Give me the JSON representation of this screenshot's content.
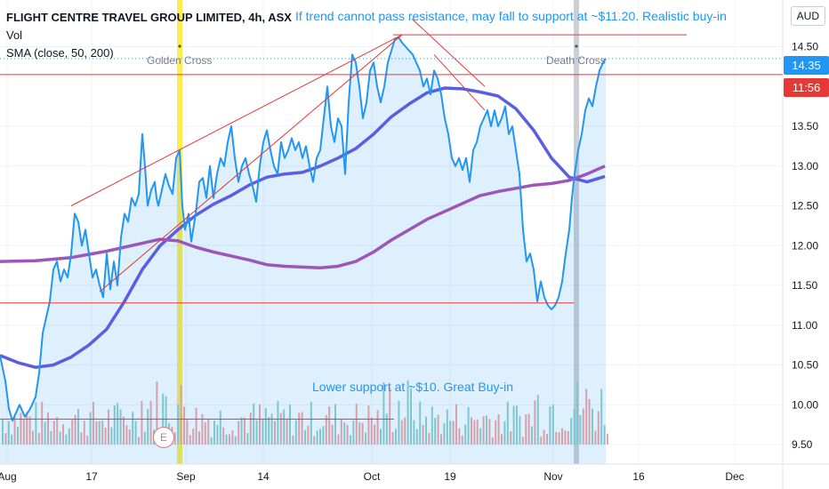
{
  "chart_data": {
    "type": "line",
    "title": "FLIGHT CENTRE TRAVEL GROUP LIMITED, 4h, ASX",
    "indicators": [
      "Vol",
      "SMA (close, 50, 200)"
    ],
    "currency": "AUD",
    "y_ticks": [
      "14.50",
      "13.50",
      "13.00",
      "12.50",
      "12.00",
      "11.50",
      "11.00",
      "10.50",
      "10.00",
      "9.50"
    ],
    "x_ticks": [
      "Aug",
      "17",
      "Sep",
      "14",
      "Oct",
      "19",
      "Nov",
      "16",
      "Dec"
    ],
    "ylim": [
      9.36,
      15.0
    ],
    "price_label": "14.35",
    "time_label": "11:56",
    "series": [
      {
        "color": "#2196f3",
        "points": [
          [
            0,
            10.62
          ],
          [
            6,
            10.3
          ],
          [
            10,
            9.95
          ],
          [
            14,
            9.8
          ],
          [
            18,
            9.9
          ],
          [
            22,
            10.0
          ],
          [
            28,
            9.85
          ],
          [
            34,
            9.95
          ],
          [
            40,
            10.1
          ],
          [
            44,
            10.4
          ],
          [
            48,
            10.9
          ],
          [
            52,
            11.1
          ],
          [
            56,
            11.3
          ],
          [
            60,
            11.7
          ],
          [
            64,
            11.8
          ],
          [
            68,
            11.55
          ],
          [
            72,
            11.7
          ],
          [
            76,
            11.6
          ],
          [
            80,
            11.9
          ],
          [
            84,
            12.4
          ],
          [
            88,
            12.3
          ],
          [
            92,
            12.0
          ],
          [
            96,
            12.2
          ],
          [
            100,
            11.9
          ],
          [
            104,
            11.6
          ],
          [
            108,
            11.7
          ],
          [
            112,
            11.5
          ],
          [
            116,
            11.35
          ],
          [
            120,
            11.9
          ],
          [
            124,
            11.45
          ],
          [
            128,
            11.8
          ],
          [
            132,
            11.5
          ],
          [
            136,
            12.1
          ],
          [
            140,
            12.4
          ],
          [
            144,
            12.3
          ],
          [
            148,
            12.6
          ],
          [
            152,
            12.5
          ],
          [
            156,
            12.65
          ],
          [
            160,
            13.4
          ],
          [
            163,
            13.0
          ],
          [
            166,
            12.5
          ],
          [
            170,
            12.7
          ],
          [
            174,
            12.8
          ],
          [
            176,
            12.6
          ],
          [
            178,
            12.5
          ],
          [
            182,
            12.7
          ],
          [
            186,
            12.9
          ],
          [
            190,
            12.75
          ],
          [
            194,
            12.65
          ],
          [
            198,
            13.1
          ],
          [
            202,
            13.2
          ],
          [
            205,
            12.5
          ],
          [
            208,
            12.2
          ],
          [
            212,
            12.4
          ],
          [
            215,
            12.05
          ],
          [
            220,
            12.4
          ],
          [
            224,
            12.8
          ],
          [
            228,
            12.85
          ],
          [
            232,
            12.6
          ],
          [
            236,
            13.0
          ],
          [
            240,
            12.6
          ],
          [
            244,
            12.9
          ],
          [
            248,
            13.1
          ],
          [
            252,
            13.0
          ],
          [
            256,
            13.3
          ],
          [
            260,
            13.5
          ],
          [
            264,
            13.1
          ],
          [
            268,
            12.8
          ],
          [
            272,
            13.0
          ],
          [
            276,
            13.1
          ],
          [
            280,
            12.9
          ],
          [
            284,
            12.75
          ],
          [
            288,
            12.55
          ],
          [
            292,
            13.0
          ],
          [
            296,
            13.3
          ],
          [
            300,
            13.45
          ],
          [
            304,
            13.2
          ],
          [
            308,
            13.0
          ],
          [
            312,
            12.9
          ],
          [
            316,
            13.3
          ],
          [
            320,
            13.1
          ],
          [
            324,
            13.2
          ],
          [
            328,
            13.35
          ],
          [
            332,
            13.2
          ],
          [
            336,
            13.3
          ],
          [
            340,
            13.1
          ],
          [
            344,
            13.25
          ],
          [
            348,
            13.0
          ],
          [
            352,
            12.8
          ],
          [
            356,
            13.1
          ],
          [
            360,
            13.2
          ],
          [
            364,
            13.6
          ],
          [
            368,
            14.0
          ],
          [
            372,
            13.5
          ],
          [
            376,
            13.3
          ],
          [
            380,
            13.6
          ],
          [
            384,
            13.5
          ],
          [
            388,
            12.9
          ],
          [
            392,
            13.8
          ],
          [
            396,
            14.4
          ],
          [
            400,
            14.3
          ],
          [
            404,
            14.0
          ],
          [
            408,
            13.6
          ],
          [
            412,
            13.8
          ],
          [
            416,
            14.2
          ],
          [
            420,
            14.3
          ],
          [
            424,
            14.0
          ],
          [
            428,
            13.8
          ],
          [
            432,
            14.0
          ],
          [
            436,
            14.3
          ],
          [
            440,
            14.45
          ],
          [
            444,
            14.6
          ],
          [
            448,
            14.62
          ],
          [
            452,
            14.55
          ],
          [
            456,
            14.5
          ],
          [
            460,
            14.45
          ],
          [
            464,
            14.4
          ],
          [
            468,
            14.3
          ],
          [
            472,
            14.2
          ],
          [
            476,
            14.0
          ],
          [
            480,
            14.1
          ],
          [
            484,
            13.9
          ],
          [
            488,
            14.2
          ],
          [
            492,
            14.1
          ],
          [
            496,
            13.9
          ],
          [
            500,
            13.6
          ],
          [
            504,
            13.4
          ],
          [
            508,
            13.1
          ],
          [
            512,
            13.0
          ],
          [
            516,
            13.1
          ],
          [
            520,
            12.95
          ],
          [
            524,
            13.1
          ],
          [
            528,
            12.8
          ],
          [
            532,
            13.2
          ],
          [
            536,
            13.3
          ],
          [
            540,
            13.5
          ],
          [
            544,
            13.6
          ],
          [
            548,
            13.7
          ],
          [
            552,
            13.5
          ],
          [
            556,
            13.7
          ],
          [
            560,
            13.5
          ],
          [
            564,
            13.6
          ],
          [
            568,
            13.75
          ],
          [
            572,
            13.4
          ],
          [
            576,
            13.5
          ],
          [
            580,
            13.2
          ],
          [
            584,
            12.9
          ],
          [
            588,
            12.2
          ],
          [
            592,
            11.8
          ],
          [
            596,
            11.9
          ],
          [
            600,
            11.7
          ],
          [
            604,
            11.3
          ],
          [
            608,
            11.55
          ],
          [
            612,
            11.35
          ],
          [
            616,
            11.25
          ],
          [
            620,
            11.2
          ],
          [
            624,
            11.25
          ],
          [
            628,
            11.35
          ],
          [
            632,
            11.55
          ],
          [
            636,
            11.9
          ],
          [
            640,
            12.2
          ],
          [
            643,
            12.6
          ],
          [
            646,
            12.9
          ],
          [
            650,
            13.2
          ],
          [
            654,
            13.4
          ],
          [
            658,
            13.7
          ],
          [
            662,
            13.85
          ],
          [
            666,
            13.75
          ],
          [
            670,
            14.0
          ],
          [
            674,
            14.2
          ],
          [
            678,
            14.3
          ],
          [
            681,
            14.35
          ]
        ]
      },
      {
        "color": "#5b5ee0",
        "points": [
          [
            0,
            10.62
          ],
          [
            20,
            10.53
          ],
          [
            40,
            10.47
          ],
          [
            60,
            10.5
          ],
          [
            80,
            10.6
          ],
          [
            100,
            10.75
          ],
          [
            120,
            10.95
          ],
          [
            140,
            11.3
          ],
          [
            160,
            11.7
          ],
          [
            180,
            12.0
          ],
          [
            200,
            12.2
          ],
          [
            220,
            12.38
          ],
          [
            240,
            12.52
          ],
          [
            260,
            12.63
          ],
          [
            280,
            12.76
          ],
          [
            300,
            12.86
          ],
          [
            320,
            12.9
          ],
          [
            340,
            12.92
          ],
          [
            360,
            13.0
          ],
          [
            380,
            13.1
          ],
          [
            400,
            13.22
          ],
          [
            420,
            13.4
          ],
          [
            440,
            13.62
          ],
          [
            460,
            13.78
          ],
          [
            480,
            13.92
          ],
          [
            500,
            13.98
          ],
          [
            520,
            13.97
          ],
          [
            540,
            13.93
          ],
          [
            560,
            13.88
          ],
          [
            580,
            13.72
          ],
          [
            600,
            13.45
          ],
          [
            620,
            13.1
          ],
          [
            640,
            12.86
          ],
          [
            660,
            12.8
          ],
          [
            680,
            12.87
          ]
        ]
      },
      {
        "color": "#9c56b8",
        "points": [
          [
            0,
            11.8
          ],
          [
            40,
            11.81
          ],
          [
            80,
            11.85
          ],
          [
            120,
            11.93
          ],
          [
            160,
            12.03
          ],
          [
            180,
            12.08
          ],
          [
            200,
            12.06
          ],
          [
            220,
            11.98
          ],
          [
            240,
            11.92
          ],
          [
            260,
            11.87
          ],
          [
            280,
            11.82
          ],
          [
            300,
            11.76
          ],
          [
            320,
            11.74
          ],
          [
            340,
            11.73
          ],
          [
            360,
            11.72
          ],
          [
            380,
            11.74
          ],
          [
            400,
            11.8
          ],
          [
            420,
            11.92
          ],
          [
            440,
            12.07
          ],
          [
            460,
            12.2
          ],
          [
            480,
            12.33
          ],
          [
            500,
            12.43
          ],
          [
            520,
            12.53
          ],
          [
            540,
            12.63
          ],
          [
            560,
            12.68
          ],
          [
            580,
            12.72
          ],
          [
            600,
            12.76
          ],
          [
            620,
            12.78
          ],
          [
            640,
            12.82
          ],
          [
            660,
            12.9
          ],
          [
            680,
            13.0
          ]
        ]
      }
    ],
    "drawings": {
      "horizontal": [
        {
          "y": 14.65,
          "x": [
            442,
            772
          ]
        },
        {
          "y": 14.15,
          "x": [
            0,
            880
          ]
        },
        {
          "y": 11.28,
          "x": [
            0,
            645
          ]
        },
        {
          "y": 9.82,
          "x": [
            0,
            443
          ]
        }
      ],
      "trend": [
        {
          "p1": [
            80,
            12.5
          ],
          "p2": [
            452,
            14.65
          ]
        },
        {
          "p1": [
            112,
            11.42
          ],
          "p2": [
            452,
            14.65
          ]
        },
        {
          "p1": [
            463,
            14.85
          ],
          "p2": [
            545,
            14.0
          ]
        },
        {
          "p1": [
            488,
            14.4
          ],
          "p2": [
            545,
            13.7
          ]
        }
      ]
    },
    "events": [
      {
        "label": "Golden Cross",
        "x": 202,
        "color": "#ffeb3b"
      },
      {
        "label": "Death Cross",
        "x": 648,
        "color": "#bdbdc7"
      }
    ],
    "annotations": [
      "If trend cannot pass resistance, may fall to support at ~$11.20. Realistic buy-in",
      "Lower support at ~$10. Great Buy-in"
    ],
    "earnings_marker": "E",
    "volume_colors": {
      "up": "#8fd1c9",
      "down": "#f5a5a0"
    }
  }
}
